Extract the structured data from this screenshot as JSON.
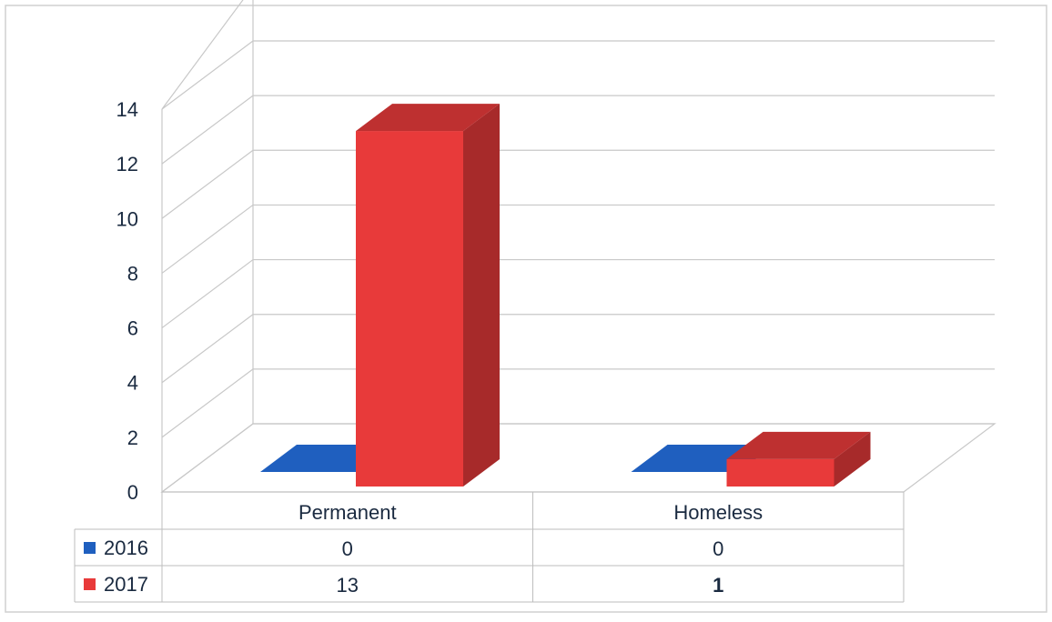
{
  "chart_data": {
    "type": "bar",
    "categories": [
      "Permanent",
      "Homeless"
    ],
    "series": [
      {
        "name": "2016",
        "values": [
          0,
          0
        ],
        "color": "#1f5fbf"
      },
      {
        "name": "2017",
        "values": [
          13,
          1
        ],
        "color": "#e83a3a"
      }
    ],
    "ylim": [
      0,
      14
    ],
    "yticks": [
      0,
      2,
      4,
      6,
      8,
      10,
      12,
      14
    ],
    "grid": true,
    "legend": "data-table-left",
    "three_d": true
  }
}
